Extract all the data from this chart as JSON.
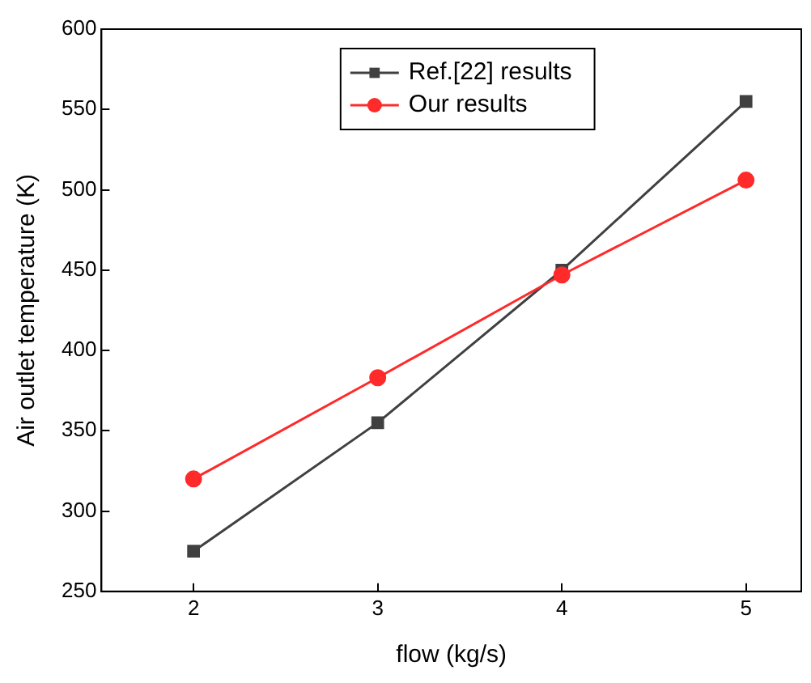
{
  "chart_data": {
    "type": "line",
    "xlabel": "flow (kg/s)",
    "ylabel": "Air outlet temperature (K)",
    "x": [
      2,
      3,
      4,
      5
    ],
    "series": [
      {
        "name": "Ref.[22] results",
        "color": "#404040",
        "marker": "square",
        "values": [
          275,
          355,
          450,
          555
        ]
      },
      {
        "name": "Our results",
        "color": "#ff2a2a",
        "marker": "circle",
        "values": [
          320,
          383,
          447,
          506
        ]
      }
    ],
    "xlim": [
      1.5,
      5.3
    ],
    "xticks": [
      2,
      3,
      4,
      5
    ],
    "ylim": [
      250,
      600
    ],
    "yticks": [
      250,
      300,
      350,
      400,
      450,
      500,
      550,
      600
    ],
    "grid": false,
    "legend": "top"
  }
}
